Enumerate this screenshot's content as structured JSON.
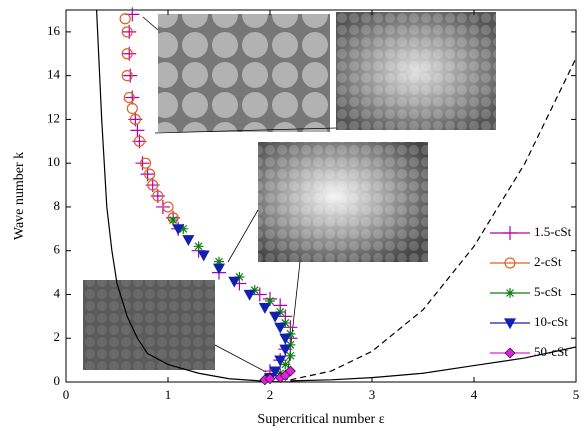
{
  "chart_data": {
    "type": "scatter",
    "xlabel": "Supercritical number ε",
    "ylabel": "Wave number k",
    "xlim": [
      0,
      5
    ],
    "ylim": [
      0,
      17
    ],
    "xticks": [
      0,
      1,
      2,
      3,
      4,
      5
    ],
    "yticks": [
      0,
      2,
      4,
      6,
      8,
      10,
      12,
      14,
      16
    ],
    "legend": "lower right",
    "curves": [
      {
        "style": "solid",
        "x": [
          0.3,
          0.35,
          0.4,
          0.45,
          0.5,
          0.6,
          0.7,
          0.8,
          1.0,
          1.3,
          1.6,
          2.0,
          2.2
        ],
        "y": [
          17,
          12,
          8,
          6,
          4.5,
          3,
          2,
          1.3,
          0.8,
          0.4,
          0.15,
          0.02,
          0
        ]
      },
      {
        "style": "dashed",
        "x": [
          2.2,
          2.6,
          3.0,
          3.5,
          4.0,
          4.5,
          5.0
        ],
        "y": [
          0.1,
          0.5,
          1.4,
          3.3,
          6.2,
          10.0,
          14.8
        ]
      },
      {
        "style": "solid",
        "x": [
          2.2,
          2.6,
          3.0,
          3.5,
          4.0,
          4.5,
          5.0
        ],
        "y": [
          0.05,
          0.1,
          0.2,
          0.4,
          0.75,
          1.1,
          1.6
        ]
      }
    ],
    "series": [
      {
        "name": "1.5-cSt",
        "color": "#b000b0",
        "marker": "plus",
        "x": [
          0.65,
          0.62,
          0.62,
          0.63,
          0.65,
          0.68,
          0.7,
          0.72,
          0.75,
          0.8,
          0.85,
          0.9,
          0.95,
          1.05,
          1.1,
          1.3,
          1.5,
          1.7,
          1.9,
          2.0,
          2.1,
          2.15,
          2.2,
          2.2,
          2.15,
          2.1,
          2.0,
          2.1
        ],
        "values": [
          16.8,
          16,
          15,
          14,
          13,
          12,
          11.5,
          11,
          10,
          9.5,
          9,
          8.5,
          8,
          7.5,
          7,
          6,
          5,
          4.5,
          4,
          3.8,
          3.5,
          3,
          2.5,
          2,
          1.5,
          1,
          0.5,
          0.3
        ]
      },
      {
        "name": "2-cSt",
        "color": "#e06020",
        "marker": "circle",
        "x": [
          0.58,
          0.6,
          0.6,
          0.6,
          0.62,
          0.65,
          0.68,
          0.72,
          0.78,
          0.82,
          0.85,
          0.9,
          1.0,
          1.05
        ],
        "values": [
          16.6,
          16,
          15,
          14,
          13,
          12.5,
          12,
          11,
          10,
          9.5,
          9,
          8.5,
          8,
          7.5
        ]
      },
      {
        "name": "5-cSt",
        "color": "#108010",
        "marker": "asterisk",
        "x": [
          1.05,
          1.15,
          1.3,
          1.5,
          1.7,
          1.85,
          2.0,
          2.1,
          2.15,
          2.2,
          2.2,
          2.2,
          2.15,
          2.1
        ],
        "values": [
          7.4,
          7,
          6.2,
          5.5,
          4.8,
          4.2,
          3.7,
          3.2,
          2.7,
          2.2,
          1.7,
          1.2,
          0.8,
          0.4
        ]
      },
      {
        "name": "10-cSt",
        "color": "#1020b0",
        "marker": "triangle-down",
        "x": [
          1.1,
          1.2,
          1.35,
          1.5,
          1.65,
          1.8,
          1.95,
          2.05,
          2.1,
          2.15,
          2.15,
          2.1,
          2.05,
          2.0
        ],
        "values": [
          7,
          6.5,
          5.8,
          5.2,
          4.6,
          4,
          3.4,
          3,
          2.5,
          2,
          1.5,
          1,
          0.5,
          0.2
        ]
      },
      {
        "name": "50-cSt",
        "color": "#e020e0",
        "marker": "diamond",
        "x": [
          1.95,
          2.0,
          2.1,
          2.15,
          2.2
        ],
        "values": [
          0.1,
          0.15,
          0.2,
          0.3,
          0.5
        ]
      }
    ]
  }
}
